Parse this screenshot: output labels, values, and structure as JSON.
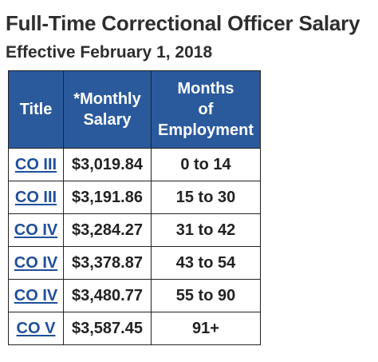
{
  "header": {
    "title": "Full-Time Correctional Officer Salary",
    "subtitle": "Effective February 1, 2018"
  },
  "table": {
    "columns": {
      "title": "Title",
      "salary_line1": "*Monthly",
      "salary_line2": "Salary",
      "months_line1": "Months",
      "months_line2": "of",
      "months_line3": "Employment"
    },
    "rows": [
      {
        "title": "CO III",
        "salary": "$3,019.84",
        "months": "0 to 14"
      },
      {
        "title": "CO III",
        "salary": "$3,191.86",
        "months": "15 to 30"
      },
      {
        "title": "CO IV",
        "salary": "$3,284.27",
        "months": "31 to 42"
      },
      {
        "title": "CO IV",
        "salary": "$3,378.87",
        "months": "43 to 54"
      },
      {
        "title": "CO IV",
        "salary": "$3,480.77",
        "months": "55 to 90"
      },
      {
        "title": "CO V",
        "salary": "$3,587.45",
        "months": "91+"
      }
    ]
  },
  "colors": {
    "header_bg": "#2a5a9c",
    "link": "#1f4f9a"
  }
}
